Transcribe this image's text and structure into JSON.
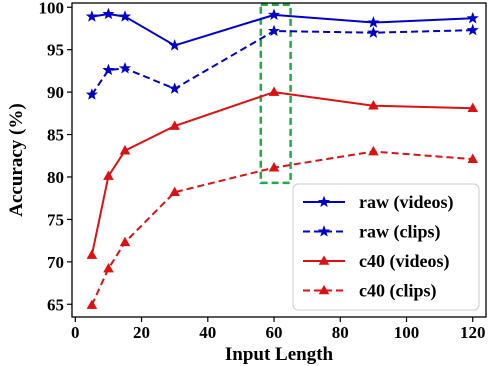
{
  "chart_data": {
    "type": "line",
    "xlabel": "Input Length",
    "ylabel": "Accuracy (%)",
    "xlim": [
      -1,
      124
    ],
    "ylim": [
      63.5,
      100.5
    ],
    "xticks": [
      0,
      20,
      40,
      60,
      80,
      100,
      120
    ],
    "yticks": [
      65,
      70,
      75,
      80,
      85,
      90,
      95,
      100
    ],
    "x": [
      5,
      10,
      15,
      30,
      60,
      90,
      120
    ],
    "grid": false,
    "legend_position": "bottom-right",
    "series": [
      {
        "name": "raw (videos)",
        "color": "#0000cc",
        "linestyle": "solid",
        "marker": "star",
        "values": [
          98.9,
          99.2,
          98.9,
          95.5,
          99.1,
          98.2,
          98.7
        ]
      },
      {
        "name": "raw (clips)",
        "color": "#0000cc",
        "linestyle": "dashed",
        "marker": "star",
        "values": [
          89.7,
          92.6,
          92.8,
          90.4,
          97.2,
          97.0,
          97.3
        ]
      },
      {
        "name": "c40 (videos)",
        "color": "#dd1111",
        "linestyle": "solid",
        "marker": "triangle",
        "values": [
          70.8,
          80.1,
          83.1,
          86.0,
          90.0,
          88.4,
          88.1
        ]
      },
      {
        "name": "c40 (clips)",
        "color": "#dd1111",
        "linestyle": "dashed",
        "marker": "triangle",
        "values": [
          64.9,
          69.2,
          72.3,
          78.2,
          81.1,
          83.0,
          82.1
        ]
      }
    ],
    "annotations": [
      {
        "type": "highlight-box",
        "color": "#22aa44",
        "linestyle": "dashed",
        "x_range": [
          56,
          65
        ],
        "y_range": [
          79.3,
          100.3
        ]
      }
    ]
  }
}
